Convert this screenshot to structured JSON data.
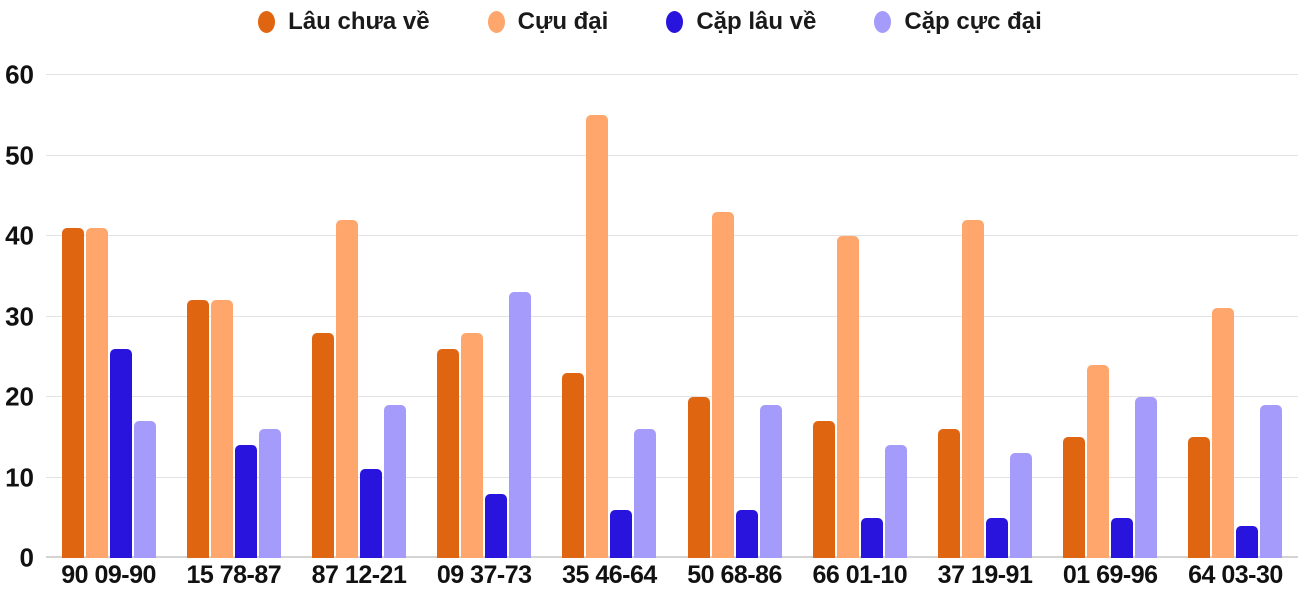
{
  "chart_data": {
    "type": "bar",
    "categories": [
      "90 09-90",
      "15 78-87",
      "87 12-21",
      "09 37-73",
      "35 46-64",
      "50 68-86",
      "66 01-10",
      "37 19-91",
      "01 69-96",
      "64 03-30"
    ],
    "series": [
      {
        "name": "Lâu chưa về",
        "color": "#e06511",
        "values": [
          41,
          32,
          28,
          26,
          23,
          20,
          17,
          16,
          15,
          15
        ]
      },
      {
        "name": "Cựu đại",
        "color": "#fea66c",
        "values": [
          41,
          32,
          42,
          28,
          55,
          43,
          40,
          42,
          24,
          31
        ]
      },
      {
        "name": "Cặp lâu về",
        "color": "#2914dd",
        "values": [
          26,
          14,
          11,
          8,
          6,
          6,
          5,
          5,
          5,
          4
        ]
      },
      {
        "name": "Cặp cực đại",
        "color": "#a49bfa",
        "values": [
          17,
          16,
          19,
          33,
          16,
          19,
          14,
          13,
          20,
          19
        ]
      }
    ],
    "ylim": [
      0,
      60
    ],
    "yticks": [
      0,
      10,
      20,
      30,
      40,
      50,
      60
    ],
    "grid": "horizontal",
    "legend_position": "top"
  },
  "colors": {
    "background": "#ffffff",
    "gridline": "#e3e3e3",
    "baseline": "#d4d4d4",
    "label_text": "#111111",
    "legend_text": "#1a1a1a"
  }
}
